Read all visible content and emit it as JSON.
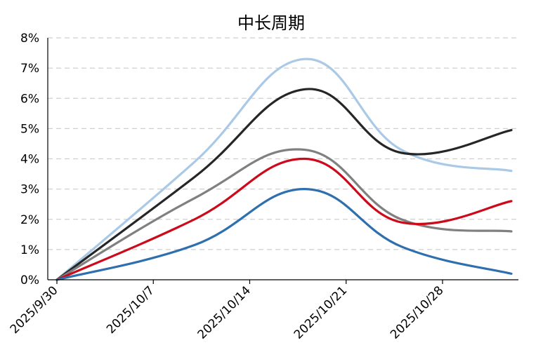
{
  "chart_data": {
    "type": "line",
    "title": "中长周期",
    "xlabel": "",
    "ylabel": "",
    "ylim": [
      0,
      8
    ],
    "y_ticks": [
      "0%",
      "1%",
      "2%",
      "3%",
      "4%",
      "5%",
      "6%",
      "7%",
      "8%"
    ],
    "x_range": [
      "2025/9/30",
      "2025/11/2"
    ],
    "x_ticks": [
      "2025/9/30",
      "2025/10/7",
      "2025/10/14",
      "2025/10/21",
      "2025/10/28"
    ],
    "grid": true,
    "legend": "none",
    "x": [
      "2025/9/30",
      "2025/10/10",
      "2025/10/18",
      "2025/10/25",
      "2025/11/2"
    ],
    "series": [
      {
        "color": "#a9c9e6",
        "values": [
          0.0,
          3.9,
          7.3,
          4.3,
          3.6
        ]
      },
      {
        "color": "#262626",
        "values": [
          0.0,
          3.4,
          6.3,
          4.2,
          4.95
        ]
      },
      {
        "color": "#808080",
        "values": [
          0.0,
          2.7,
          4.3,
          2.0,
          1.6
        ]
      },
      {
        "color": "#cc0a1b",
        "values": [
          0.0,
          2.0,
          4.0,
          1.9,
          2.6
        ]
      },
      {
        "color": "#2e6fad",
        "values": [
          0.0,
          1.15,
          3.0,
          1.1,
          0.2
        ]
      }
    ]
  }
}
